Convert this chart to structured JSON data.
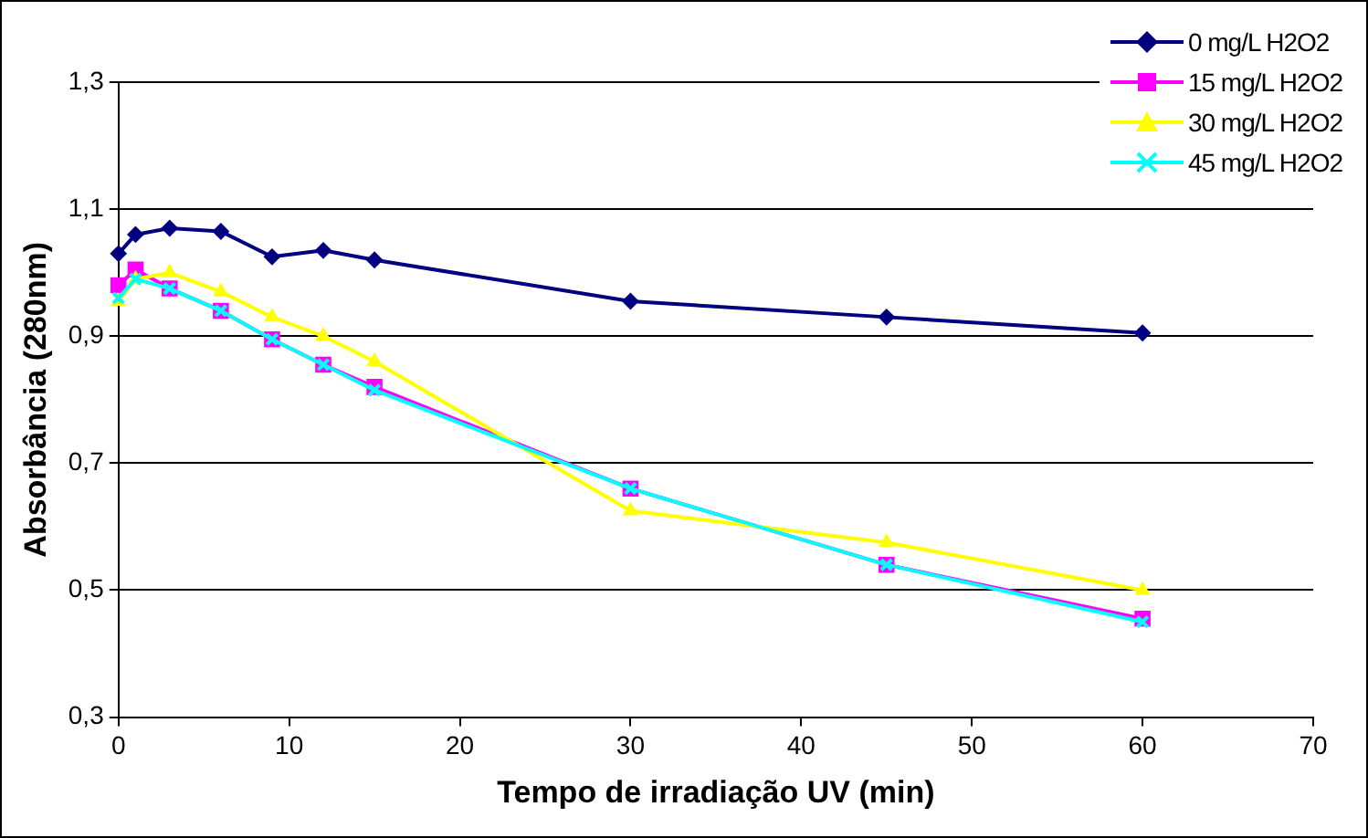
{
  "chart_data": {
    "type": "line",
    "xlabel": "Tempo de irradiação UV (min)",
    "ylabel": "Absorbância (280nm)",
    "xlim": [
      0,
      70
    ],
    "xticks": [
      0,
      10,
      20,
      30,
      40,
      50,
      60,
      70
    ],
    "ylim": [
      0.3,
      1.3
    ],
    "yticks": [
      {
        "value": 0.3,
        "label": "0,3"
      },
      {
        "value": 0.5,
        "label": "0,5"
      },
      {
        "value": 0.7,
        "label": "0,7"
      },
      {
        "value": 0.9,
        "label": "0,9"
      },
      {
        "value": 1.1,
        "label": "1,1"
      },
      {
        "value": 1.3,
        "label": "1,3"
      }
    ],
    "x": [
      0,
      1,
      3,
      6,
      9,
      12,
      15,
      30,
      45,
      60
    ],
    "grid": "y",
    "legend": "top right",
    "series": [
      {
        "name": "0 mg/L H2O2",
        "color": "#000080",
        "marker": "diamond",
        "values": [
          1.03,
          1.06,
          1.07,
          1.065,
          1.025,
          1.035,
          1.02,
          0.955,
          0.93,
          0.905
        ]
      },
      {
        "name": "15 mg/L H2O2",
        "color": "#ff00ff",
        "marker": "square",
        "values": [
          0.98,
          1.005,
          0.975,
          0.94,
          0.895,
          0.855,
          0.82,
          0.66,
          0.54,
          0.455
        ]
      },
      {
        "name": "30 mg/L H2O2",
        "color": "#ffff00",
        "marker": "triangle",
        "values": [
          0.955,
          0.99,
          1.0,
          0.97,
          0.93,
          0.9,
          0.86,
          0.625,
          0.575,
          0.5
        ]
      },
      {
        "name": "45 mg/L H2O2",
        "color": "#00ffff",
        "marker": "cross",
        "values": [
          0.96,
          0.99,
          0.975,
          0.94,
          0.895,
          0.855,
          0.815,
          0.66,
          0.54,
          0.45
        ]
      }
    ]
  }
}
